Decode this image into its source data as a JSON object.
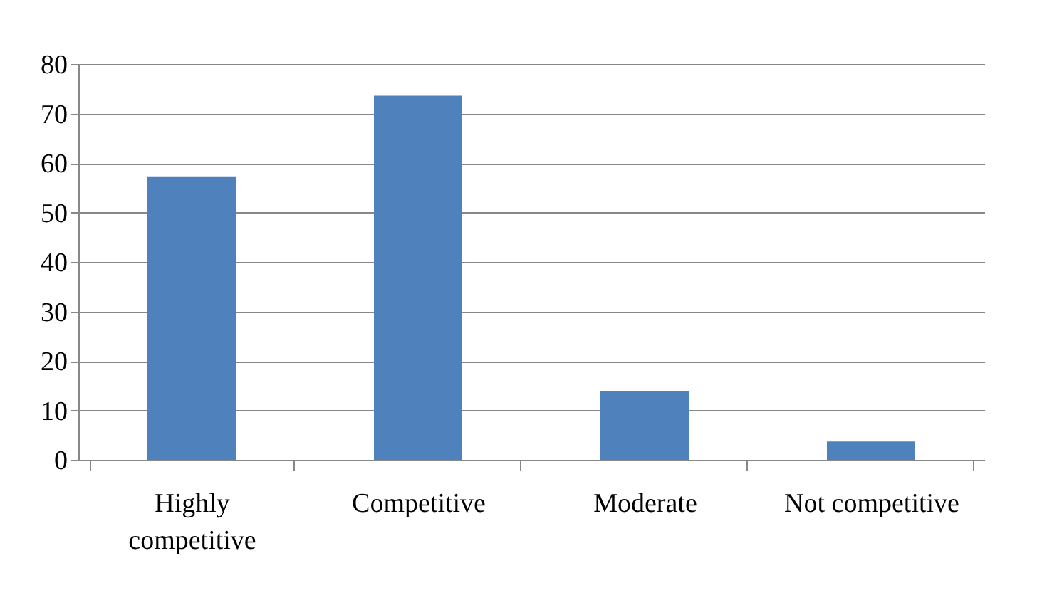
{
  "chart_data": {
    "type": "bar",
    "categories": [
      "Highly competitive",
      "Competitive",
      "Moderate",
      "Not competitive"
    ],
    "values": [
      57.3,
      73.6,
      13.8,
      3.7
    ],
    "color": "#4f81bd",
    "ylim": [
      0,
      80
    ],
    "yticks": [
      0,
      10,
      20,
      30,
      40,
      50,
      60,
      70,
      80
    ],
    "grid": "y"
  }
}
